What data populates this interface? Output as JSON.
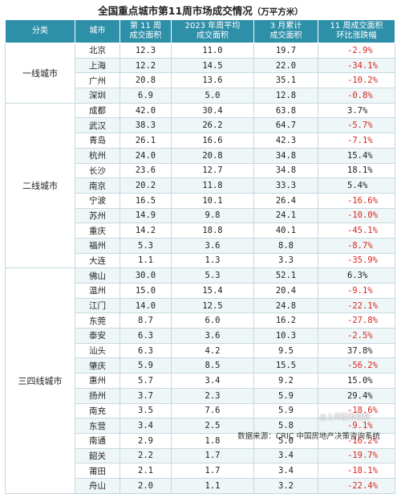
{
  "title": "全国重点城市第11周市场成交情况",
  "title_unit": "（万平方米）",
  "headers": {
    "category": "分类",
    "city": "城市",
    "week11": [
      "第 11 周",
      "成交面积"
    ],
    "avg2023": [
      "2023 年周平均",
      "成交面积"
    ],
    "march": [
      "3 月累计",
      "成交面积"
    ],
    "change": [
      "11 周成交面积",
      "环比涨跌幅"
    ]
  },
  "groups": [
    {
      "category": "一线城市",
      "rows": [
        {
          "city": "北京",
          "week11": "12.3",
          "avg2023": "11.0",
          "march": "19.7",
          "change": "-2.9%"
        },
        {
          "city": "上海",
          "week11": "12.2",
          "avg2023": "14.5",
          "march": "22.0",
          "change": "-34.1%"
        },
        {
          "city": "广州",
          "week11": "20.8",
          "avg2023": "13.6",
          "march": "35.1",
          "change": "-10.2%"
        },
        {
          "city": "深圳",
          "week11": "6.9",
          "avg2023": "5.0",
          "march": "12.8",
          "change": "-0.8%"
        }
      ]
    },
    {
      "category": "二线城市",
      "rows": [
        {
          "city": "成都",
          "week11": "42.0",
          "avg2023": "30.4",
          "march": "63.8",
          "change": "3.7%"
        },
        {
          "city": "武汉",
          "week11": "38.3",
          "avg2023": "26.2",
          "march": "64.7",
          "change": "-5.7%"
        },
        {
          "city": "青岛",
          "week11": "26.1",
          "avg2023": "16.6",
          "march": "42.3",
          "change": "-7.1%"
        },
        {
          "city": "杭州",
          "week11": "24.0",
          "avg2023": "20.8",
          "march": "34.8",
          "change": "15.4%"
        },
        {
          "city": "长沙",
          "week11": "23.6",
          "avg2023": "12.7",
          "march": "34.8",
          "change": "18.1%"
        },
        {
          "city": "南京",
          "week11": "20.2",
          "avg2023": "11.8",
          "march": "33.3",
          "change": "5.4%"
        },
        {
          "city": "宁波",
          "week11": "16.5",
          "avg2023": "10.1",
          "march": "26.4",
          "change": "-16.6%"
        },
        {
          "city": "苏州",
          "week11": "14.9",
          "avg2023": "9.8",
          "march": "24.1",
          "change": "-10.0%"
        },
        {
          "city": "重庆",
          "week11": "14.2",
          "avg2023": "18.8",
          "march": "40.1",
          "change": "-45.1%"
        },
        {
          "city": "福州",
          "week11": "5.3",
          "avg2023": "3.6",
          "march": "8.8",
          "change": "-8.7%"
        },
        {
          "city": "大连",
          "week11": "1.1",
          "avg2023": "1.3",
          "march": "3.3",
          "change": "-35.9%"
        }
      ]
    },
    {
      "category": "三四线城市",
      "rows": [
        {
          "city": "佛山",
          "week11": "30.0",
          "avg2023": "5.3",
          "march": "52.1",
          "change": "6.3%"
        },
        {
          "city": "温州",
          "week11": "15.0",
          "avg2023": "15.4",
          "march": "20.4",
          "change": "-9.1%"
        },
        {
          "city": "江门",
          "week11": "14.0",
          "avg2023": "12.5",
          "march": "24.8",
          "change": "-22.1%"
        },
        {
          "city": "东莞",
          "week11": "8.7",
          "avg2023": "6.0",
          "march": "16.2",
          "change": "-27.8%"
        },
        {
          "city": "泰安",
          "week11": "6.3",
          "avg2023": "3.6",
          "march": "10.3",
          "change": "-2.5%"
        },
        {
          "city": "汕头",
          "week11": "6.3",
          "avg2023": "4.2",
          "march": "9.5",
          "change": "37.8%"
        },
        {
          "city": "肇庆",
          "week11": "5.9",
          "avg2023": "8.5",
          "march": "15.5",
          "change": "-56.2%"
        },
        {
          "city": "惠州",
          "week11": "5.7",
          "avg2023": "3.4",
          "march": "9.2",
          "change": "15.0%"
        },
        {
          "city": "扬州",
          "week11": "3.7",
          "avg2023": "2.3",
          "march": "5.9",
          "change": "29.4%"
        },
        {
          "city": "南充",
          "week11": "3.5",
          "avg2023": "7.6",
          "march": "5.9",
          "change": "-18.6%"
        },
        {
          "city": "东营",
          "week11": "3.4",
          "avg2023": "2.5",
          "march": "5.8",
          "change": "-9.1%"
        },
        {
          "city": "南通",
          "week11": "2.9",
          "avg2023": "1.8",
          "march": "5.0",
          "change": "-16.2%"
        },
        {
          "city": "韶关",
          "week11": "2.2",
          "avg2023": "1.7",
          "march": "3.4",
          "change": "-19.7%"
        },
        {
          "city": "莆田",
          "week11": "2.1",
          "avg2023": "1.7",
          "march": "3.4",
          "change": "-18.1%"
        },
        {
          "city": "舟山",
          "week11": "2.0",
          "avg2023": "1.1",
          "march": "3.2",
          "change": "-22.4%"
        }
      ]
    }
  ],
  "source": "数据来源：CRIC 中国房地产决策咨询系统",
  "watermark": "@上海楼市观察",
  "colors": {
    "header_bg": "#2e8fa8",
    "negative": "#d9261c",
    "stripe": "#eef6f8"
  }
}
